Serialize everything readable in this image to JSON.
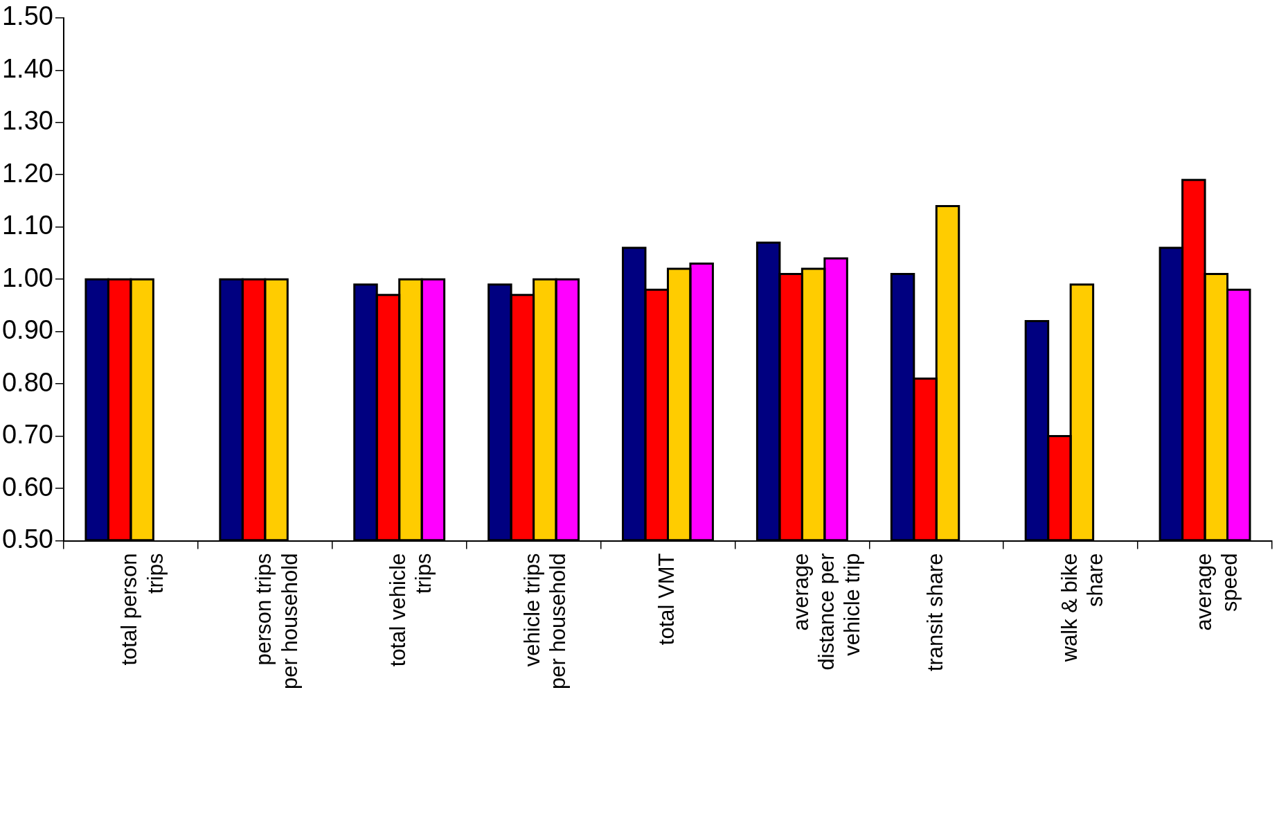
{
  "chart_data": {
    "type": "bar",
    "categories": [
      "total person\ntrips",
      "person trips\nper household",
      "total vehicle\ntrips",
      "vehicle trips\nper household",
      "total VMT",
      "average\ndistance per\nvehicle trip",
      "transit share",
      "walk & bike\nshare",
      "average\nspeed"
    ],
    "series": [
      {
        "color": "#000080",
        "values": [
          1.0,
          1.0,
          0.99,
          0.99,
          1.06,
          1.07,
          1.01,
          0.92,
          1.06
        ]
      },
      {
        "color": "#ff0000",
        "values": [
          1.0,
          1.0,
          0.97,
          0.97,
          0.98,
          1.01,
          0.81,
          0.7,
          1.19
        ]
      },
      {
        "color": "#ffcc00",
        "values": [
          1.0,
          1.0,
          1.0,
          1.0,
          1.02,
          1.02,
          1.14,
          0.99,
          1.01
        ]
      },
      {
        "color": "#ff00ff",
        "values": [
          null,
          null,
          1.0,
          1.0,
          1.03,
          1.04,
          null,
          null,
          0.98
        ]
      }
    ],
    "ylim": [
      0.5,
      1.5
    ],
    "yticks": [
      {
        "value": 0.5,
        "label": "0.50"
      },
      {
        "value": 0.6,
        "label": "0.60"
      },
      {
        "value": 0.7,
        "label": "0.70"
      },
      {
        "value": 0.8,
        "label": "0.80"
      },
      {
        "value": 0.9,
        "label": "0.90"
      },
      {
        "value": 1.0,
        "label": "1.00"
      },
      {
        "value": 1.1,
        "label": "1.10"
      },
      {
        "value": 1.2,
        "label": "1.20"
      },
      {
        "value": 1.3,
        "label": "1.30"
      },
      {
        "value": 1.4,
        "label": "1.40"
      },
      {
        "value": 1.5,
        "label": "1.50"
      }
    ],
    "grid": false,
    "legend": false
  }
}
